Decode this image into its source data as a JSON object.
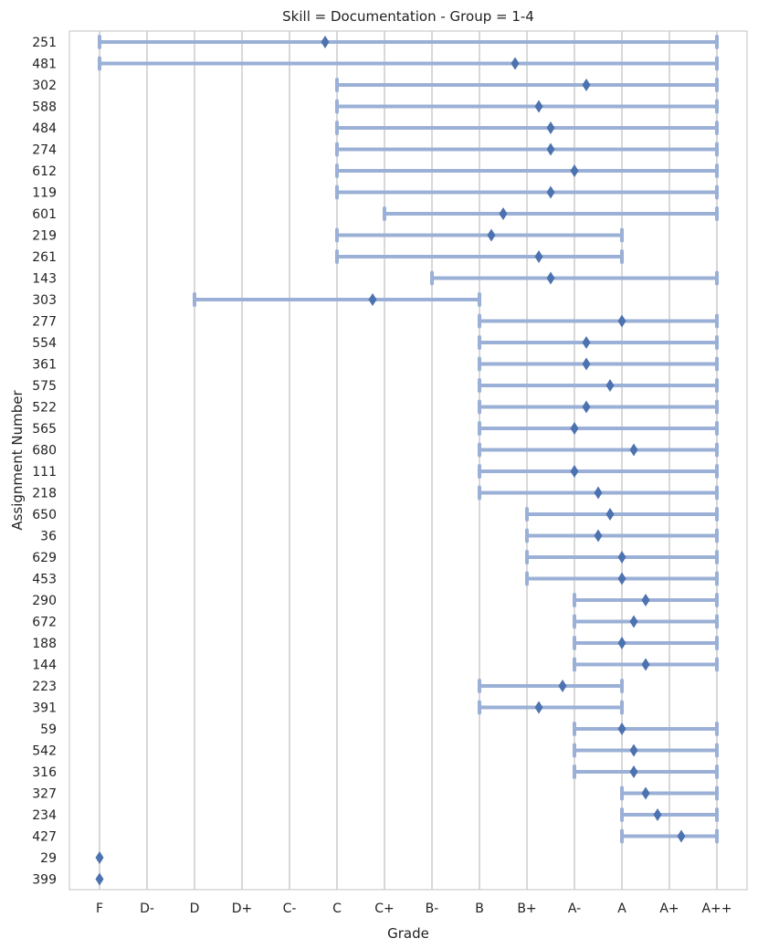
{
  "chart_data": {
    "type": "range-dot",
    "title": "Skill = Documentation - Group = 1-4",
    "xlabel": "Grade",
    "ylabel": "Assignment Number",
    "grades": [
      "F",
      "D-",
      "D",
      "D+",
      "C-",
      "C",
      "C+",
      "B-",
      "B",
      "B+",
      "A-",
      "A",
      "A+",
      "A++"
    ],
    "grid": "vertical",
    "rows": [
      {
        "label": "251",
        "low": 0,
        "high": 13,
        "mark": 4.75
      },
      {
        "label": "481",
        "low": 0,
        "high": 13,
        "mark": 8.75
      },
      {
        "label": "302",
        "low": 5,
        "high": 13,
        "mark": 10.25
      },
      {
        "label": "588",
        "low": 5,
        "high": 13,
        "mark": 9.25
      },
      {
        "label": "484",
        "low": 5,
        "high": 13,
        "mark": 9.5
      },
      {
        "label": "274",
        "low": 5,
        "high": 13,
        "mark": 9.5
      },
      {
        "label": "612",
        "low": 5,
        "high": 13,
        "mark": 10
      },
      {
        "label": "119",
        "low": 5,
        "high": 13,
        "mark": 9.5
      },
      {
        "label": "601",
        "low": 6,
        "high": 13,
        "mark": 8.5
      },
      {
        "label": "219",
        "low": 5,
        "high": 11,
        "mark": 8.25
      },
      {
        "label": "261",
        "low": 5,
        "high": 11,
        "mark": 9.25
      },
      {
        "label": "143",
        "low": 7,
        "high": 13,
        "mark": 9.5
      },
      {
        "label": "303",
        "low": 2,
        "high": 8,
        "mark": 5.75
      },
      {
        "label": "277",
        "low": 8,
        "high": 13,
        "mark": 11
      },
      {
        "label": "554",
        "low": 8,
        "high": 13,
        "mark": 10.25
      },
      {
        "label": "361",
        "low": 8,
        "high": 13,
        "mark": 10.25
      },
      {
        "label": "575",
        "low": 8,
        "high": 13,
        "mark": 10.75
      },
      {
        "label": "522",
        "low": 8,
        "high": 13,
        "mark": 10.25
      },
      {
        "label": "565",
        "low": 8,
        "high": 13,
        "mark": 10
      },
      {
        "label": "680",
        "low": 8,
        "high": 13,
        "mark": 11.25
      },
      {
        "label": "111",
        "low": 8,
        "high": 13,
        "mark": 10
      },
      {
        "label": "218",
        "low": 8,
        "high": 13,
        "mark": 10.5
      },
      {
        "label": "650",
        "low": 9,
        "high": 13,
        "mark": 10.75
      },
      {
        "label": "36",
        "low": 9,
        "high": 13,
        "mark": 10.5
      },
      {
        "label": "629",
        "low": 9,
        "high": 13,
        "mark": 11
      },
      {
        "label": "453",
        "low": 9,
        "high": 13,
        "mark": 11
      },
      {
        "label": "290",
        "low": 10,
        "high": 13,
        "mark": 11.5
      },
      {
        "label": "672",
        "low": 10,
        "high": 13,
        "mark": 11.25
      },
      {
        "label": "188",
        "low": 10,
        "high": 13,
        "mark": 11
      },
      {
        "label": "144",
        "low": 10,
        "high": 13,
        "mark": 11.5
      },
      {
        "label": "223",
        "low": 8,
        "high": 11,
        "mark": 9.75
      },
      {
        "label": "391",
        "low": 8,
        "high": 11,
        "mark": 9.25
      },
      {
        "label": "59",
        "low": 10,
        "high": 13,
        "mark": 11
      },
      {
        "label": "542",
        "low": 10,
        "high": 13,
        "mark": 11.25
      },
      {
        "label": "316",
        "low": 10,
        "high": 13,
        "mark": 11.25
      },
      {
        "label": "327",
        "low": 11,
        "high": 13,
        "mark": 11.5
      },
      {
        "label": "234",
        "low": 11,
        "high": 13,
        "mark": 11.75
      },
      {
        "label": "427",
        "low": 11,
        "high": 13,
        "mark": 12.25
      },
      {
        "label": "29",
        "low": null,
        "high": null,
        "mark": 0
      },
      {
        "label": "399",
        "low": null,
        "high": null,
        "mark": 0
      }
    ],
    "colors": {
      "range": "#9bb0d6",
      "marker": "#4c72b0",
      "grid": "#cccccc",
      "frame": "#cccccc"
    }
  }
}
